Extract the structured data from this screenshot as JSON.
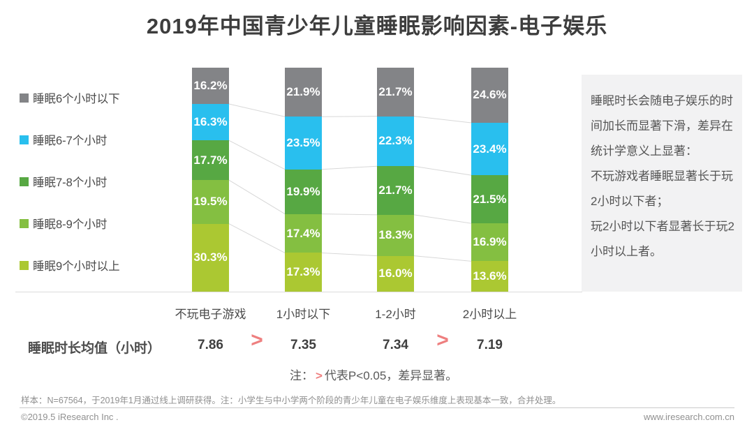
{
  "title": "2019年中国青少年儿童睡眠影响因素-电子娱乐",
  "accent_red": "#ee7f7f",
  "chart_data": {
    "type": "bar",
    "variant": "stacked-100",
    "unit": "%",
    "grid": false,
    "legend_position": "left",
    "ylim": [
      0,
      100
    ],
    "categories": [
      "不玩电子游戏",
      "1小时以下",
      "1-2小时",
      "2小时以上"
    ],
    "series": [
      {
        "name": "睡眠6个小时以下",
        "color": "#838487",
        "values": [
          16.2,
          21.9,
          21.7,
          24.6
        ]
      },
      {
        "name": "睡眠6-7个小时",
        "color": "#29bfee",
        "values": [
          16.3,
          23.5,
          22.3,
          23.4
        ]
      },
      {
        "name": "睡眠7-8个小时",
        "color": "#57a843",
        "values": [
          17.7,
          19.9,
          21.7,
          21.5
        ]
      },
      {
        "name": "睡眠8-9个小时",
        "color": "#84bf41",
        "values": [
          19.5,
          17.4,
          18.3,
          16.9
        ]
      },
      {
        "name": "睡眠9个小时以上",
        "color": "#abc832",
        "values": [
          30.3,
          17.3,
          16.0,
          13.6
        ]
      }
    ],
    "connector_lines": true
  },
  "mean_row": {
    "label": "睡眠时长均值（小时）",
    "values": [
      "7.86",
      "7.35",
      "7.34",
      "7.19"
    ],
    "comparisons": [
      ">",
      "",
      ">"
    ]
  },
  "note": {
    "prefix": "注：",
    "symbol": ">",
    "suffix": "代表P<0.05，差异显著。"
  },
  "insight_box": {
    "paragraphs": [
      "睡眠时长会随电子娱乐的时间加长而显著下滑，差异在统计学意义上显著：",
      "不玩游戏者睡眠显著长于玩2小时以下者；",
      "玩2小时以下者显著长于玩2小时以上者。"
    ]
  },
  "footer": {
    "sample_note": "样本：N=67564，于2019年1月通过线上调研获得。注：小学生与中小学两个阶段的青少年儿童在电子娱乐维度上表现基本一致，合并处理。",
    "copyright": "©2019.5 iResearch Inc .",
    "website": "www.iresearch.com.cn"
  }
}
